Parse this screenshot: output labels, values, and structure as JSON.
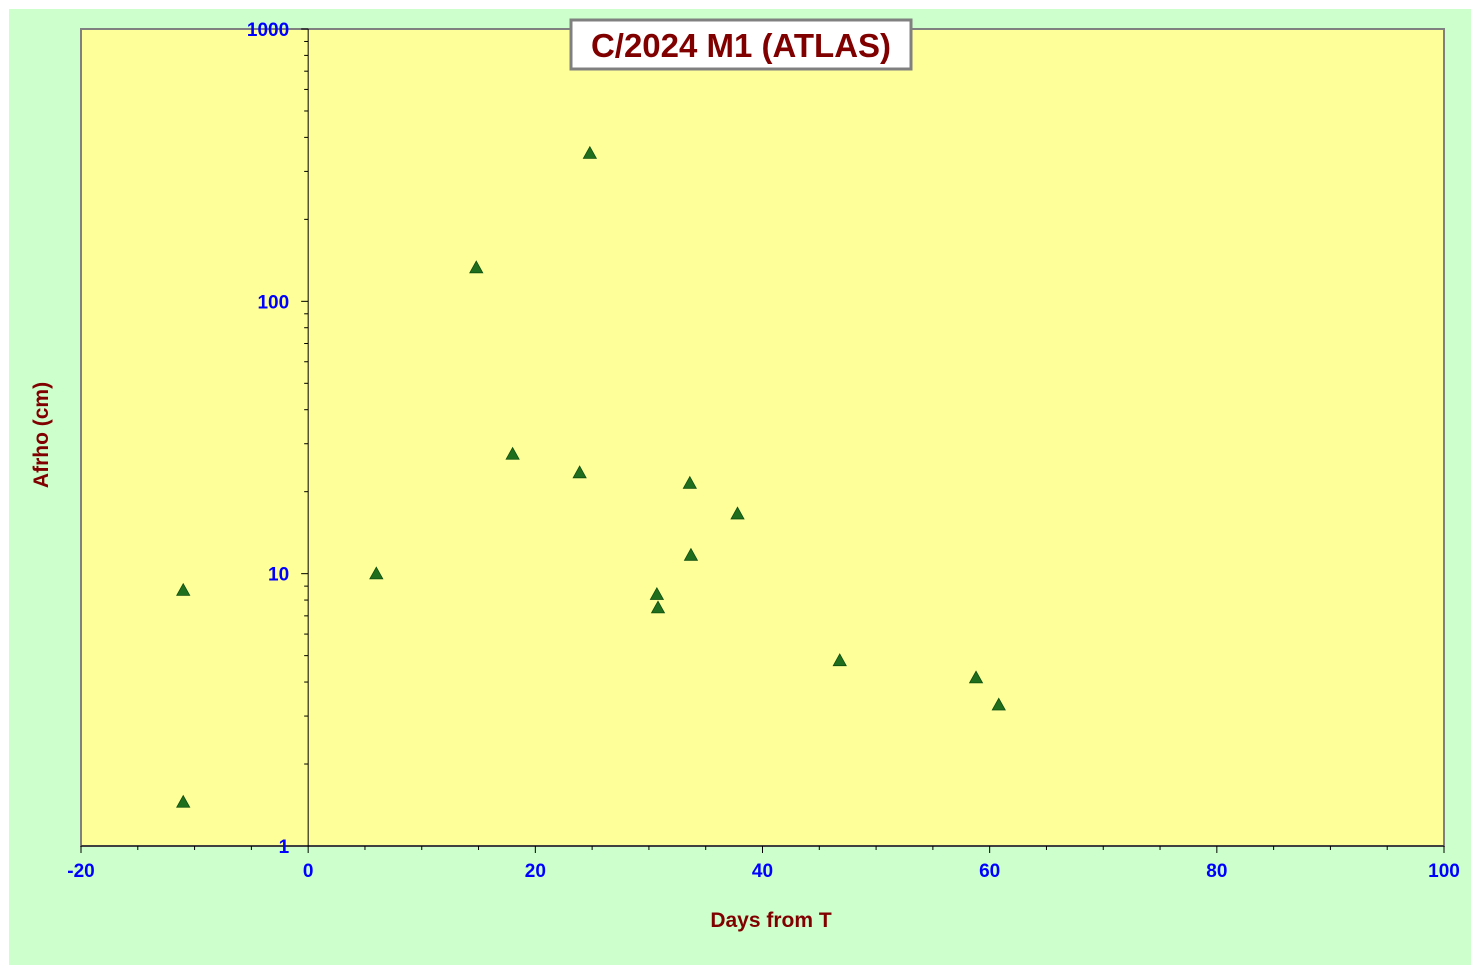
{
  "colors": {
    "page_background": "#ffffff",
    "chart_area": "#ccffcc",
    "plot_area": "#ffff99",
    "plot_border": "#808080",
    "axis_line": "#000000",
    "tick_label": "#0000ff",
    "axis_title": "#800000",
    "title_text": "#800000",
    "title_border": "#808080",
    "title_background": "#ffffff",
    "marker": "#1e6e1e"
  },
  "chart_data": {
    "type": "scatter",
    "title": "C/2024 M1 (ATLAS)",
    "xlabel": "Days from T",
    "ylabel": "Afrho (cm)",
    "xlim": [
      -20,
      100
    ],
    "ylim": [
      1,
      1000
    ],
    "yscale": "log",
    "x_ticks": [
      "-20",
      "0",
      "20",
      "40",
      "60",
      "80",
      "100"
    ],
    "y_ticks": [
      "1",
      "10",
      "100",
      "1000"
    ],
    "grid": false,
    "legend": "none",
    "marker": "triangle",
    "series": [
      {
        "x": [
          -11,
          -11,
          6,
          14.8,
          18,
          23.9,
          24.8,
          30.7,
          30.8,
          33.6,
          33.7,
          37.8,
          46.8,
          58.8,
          60.8
        ],
        "y": [
          8.7,
          1.45,
          10,
          133,
          27.5,
          23.5,
          350,
          8.4,
          7.5,
          21.5,
          11.7,
          16.6,
          4.8,
          4.15,
          3.3
        ]
      }
    ]
  }
}
